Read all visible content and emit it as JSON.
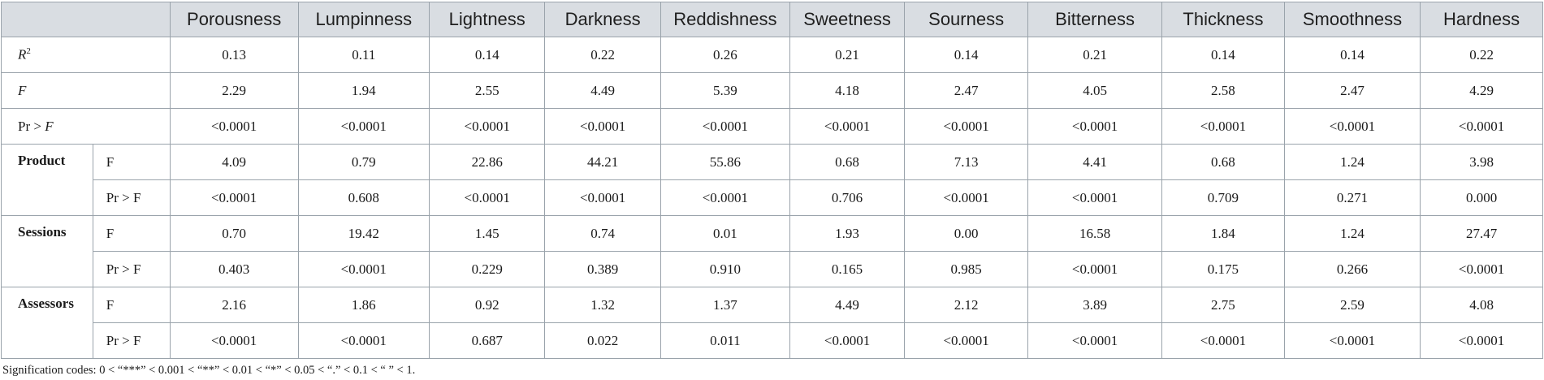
{
  "table": {
    "columns": [
      "Porousness",
      "Lumpinness",
      "Lightness",
      "Darkness",
      "Reddishness",
      "Sweetness",
      "Sourness",
      "Bitterness",
      "Thickness",
      "Smoothness",
      "Hardness"
    ],
    "model_rows": [
      {
        "label_main": "R",
        "label_sup": "2",
        "italic": true,
        "values": [
          "0.13",
          "0.11",
          "0.14",
          "0.22",
          "0.26",
          "0.21",
          "0.14",
          "0.21",
          "0.14",
          "0.14",
          "0.22"
        ]
      },
      {
        "label_main": "F",
        "label_sup": "",
        "italic": true,
        "values": [
          "2.29",
          "1.94",
          "2.55",
          "4.49",
          "5.39",
          "4.18",
          "2.47",
          "4.05",
          "2.58",
          "2.47",
          "4.29"
        ]
      },
      {
        "label_prefix": "Pr > ",
        "label_main": "F",
        "label_sup": "",
        "italic": true,
        "values": [
          "<0.0001",
          "<0.0001",
          "<0.0001",
          "<0.0001",
          "<0.0001",
          "<0.0001",
          "<0.0001",
          "<0.0001",
          "<0.0001",
          "<0.0001",
          "<0.0001"
        ]
      }
    ],
    "groups": [
      {
        "name": "Product",
        "rows": [
          {
            "stat": "F",
            "values": [
              "4.09",
              "0.79",
              "22.86",
              "44.21",
              "55.86",
              "0.68",
              "7.13",
              "4.41",
              "0.68",
              "1.24",
              "3.98"
            ]
          },
          {
            "stat": "Pr > F",
            "values": [
              "<0.0001",
              "0.608",
              "<0.0001",
              "<0.0001",
              "<0.0001",
              "0.706",
              "<0.0001",
              "<0.0001",
              "0.709",
              "0.271",
              "0.000"
            ]
          }
        ]
      },
      {
        "name": "Sessions",
        "rows": [
          {
            "stat": "F",
            "values": [
              "0.70",
              "19.42",
              "1.45",
              "0.74",
              "0.01",
              "1.93",
              "0.00",
              "16.58",
              "1.84",
              "1.24",
              "27.47"
            ]
          },
          {
            "stat": "Pr > F",
            "values": [
              "0.403",
              "<0.0001",
              "0.229",
              "0.389",
              "0.910",
              "0.165",
              "0.985",
              "<0.0001",
              "0.175",
              "0.266",
              "<0.0001"
            ]
          }
        ]
      },
      {
        "name": "Assessors",
        "rows": [
          {
            "stat": "F",
            "values": [
              "2.16",
              "1.86",
              "0.92",
              "1.32",
              "1.37",
              "4.49",
              "2.12",
              "3.89",
              "2.75",
              "2.59",
              "4.08"
            ]
          },
          {
            "stat": "Pr > F",
            "values": [
              "<0.0001",
              "<0.0001",
              "0.687",
              "0.022",
              "0.011",
              "<0.0001",
              "<0.0001",
              "<0.0001",
              "<0.0001",
              "<0.0001",
              "<0.0001"
            ]
          }
        ]
      }
    ]
  },
  "footnote": "Signification codes: 0 < “***” < 0.001 < “**” < 0.01 < “*” < 0.05 < “.” < 0.1 < “ ” < 1."
}
